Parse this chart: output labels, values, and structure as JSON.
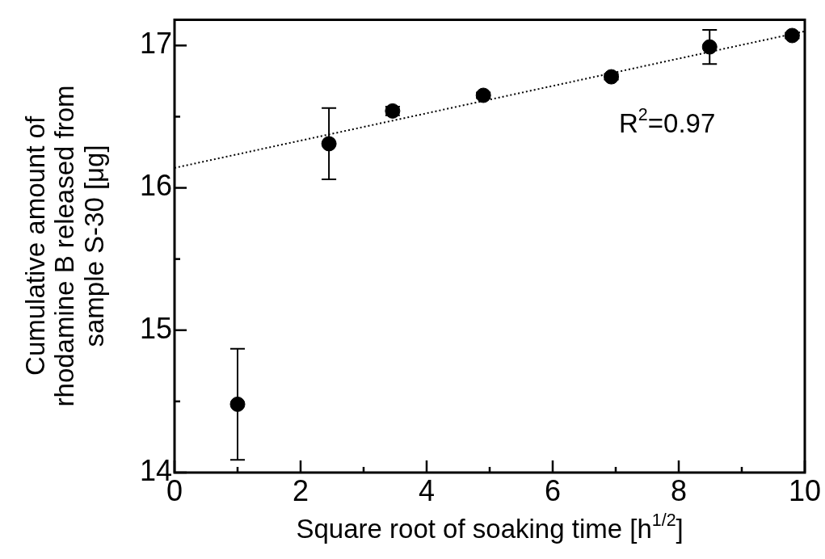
{
  "chart_data": {
    "type": "scatter",
    "xlabel": "Square root of soaking time [h$^{1/2}$]",
    "ylabel": "Cumulative amount of rhodamine B released from sample S-30  [μg]",
    "xlim": [
      0,
      10
    ],
    "ylim": [
      14,
      17.18
    ],
    "xticks": [
      0,
      {
        "value": 1,
        "label": null
      },
      2,
      {
        "value": 3,
        "label": null
      },
      4,
      {
        "value": 5,
        "label": null
      },
      6,
      {
        "value": 7,
        "label": null
      },
      8,
      {
        "value": 9,
        "label": null
      },
      10
    ],
    "yticks": [
      14,
      {
        "value": 14.5,
        "label": null
      },
      15,
      {
        "value": 15.5,
        "label": null
      },
      16,
      {
        "value": 16.5,
        "label": null
      },
      17
    ],
    "marker": "circle",
    "annotations": [
      "R$^{2}$=0.97"
    ],
    "series": [
      {
        "color": "#000000",
        "x": [
          1,
          2.45,
          3.46,
          4.9,
          6.93,
          8.49,
          9.8
        ],
        "values": [
          14.48,
          16.31,
          16.54,
          16.65,
          16.78,
          16.99,
          17.07
        ],
        "errors": [
          0.39,
          0.25,
          0.03,
          0.02,
          0.02,
          0.12,
          0.02
        ]
      },
      {
        "type": "line",
        "color": "#000000",
        "marker": "none",
        "line_style": "dotted",
        "x": [
          0,
          10
        ],
        "values": [
          16.14,
          17.1
        ]
      }
    ]
  }
}
